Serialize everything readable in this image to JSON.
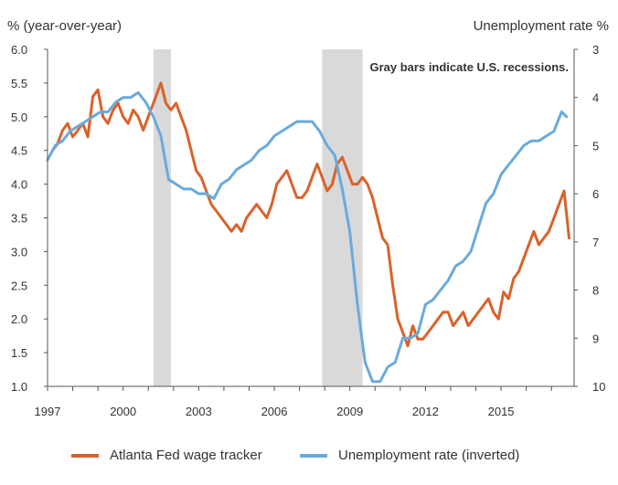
{
  "chart_data": {
    "type": "line",
    "title": "",
    "ylabel_left": "% (year-over-year)",
    "ylabel_right": "Unemployment rate  %",
    "annotation": "Gray bars indicate U.S. recessions.",
    "x_range": [
      1997,
      2017.9
    ],
    "x_ticks": [
      1997,
      2000,
      2003,
      2006,
      2009,
      2012,
      2015
    ],
    "x_tick_labels": [
      "1997",
      "2000",
      "2003",
      "2006",
      "2009",
      "2012",
      "2015"
    ],
    "y_left": {
      "range": [
        1.0,
        6.0
      ],
      "ticks": [
        1.0,
        1.5,
        2.0,
        2.5,
        3.0,
        3.5,
        4.0,
        4.5,
        5.0,
        5.5,
        6.0
      ],
      "tick_labels": [
        "1.0",
        "1.5",
        "2.0",
        "2.5",
        "3.0",
        "3.5",
        "4.0",
        "4.5",
        "5.0",
        "5.5",
        "6.0"
      ]
    },
    "y_right": {
      "range": [
        3,
        10
      ],
      "inverted": true,
      "ticks": [
        3,
        4,
        5,
        6,
        7,
        8,
        9,
        10
      ],
      "tick_labels": [
        "3",
        "4",
        "5",
        "6",
        "7",
        "8",
        "9",
        "10"
      ]
    },
    "recessions": [
      {
        "start": 2001.2,
        "end": 2001.9
      },
      {
        "start": 2007.9,
        "end": 2009.5
      }
    ],
    "series": [
      {
        "name": "Atlanta Fed wage tracker",
        "axis": "left",
        "color": "#d9622b",
        "x": [
          1997.2,
          1997.4,
          1997.6,
          1997.8,
          1998.0,
          1998.2,
          1998.4,
          1998.6,
          1998.8,
          1999.0,
          1999.2,
          1999.4,
          1999.6,
          1999.8,
          2000.0,
          2000.2,
          2000.4,
          2000.6,
          2000.8,
          2001.0,
          2001.1,
          2001.3,
          2001.5,
          2001.7,
          2001.9,
          2002.1,
          2002.3,
          2002.5,
          2002.7,
          2002.9,
          2003.1,
          2003.3,
          2003.5,
          2003.7,
          2003.9,
          2004.1,
          2004.3,
          2004.5,
          2004.7,
          2004.9,
          2005.1,
          2005.3,
          2005.5,
          2005.7,
          2005.9,
          2006.1,
          2006.3,
          2006.5,
          2006.7,
          2006.9,
          2007.1,
          2007.3,
          2007.5,
          2007.7,
          2007.9,
          2008.1,
          2008.3,
          2008.5,
          2008.7,
          2008.9,
          2009.1,
          2009.3,
          2009.5,
          2009.7,
          2009.9,
          2010.1,
          2010.3,
          2010.5,
          2010.7,
          2010.9,
          2011.1,
          2011.3,
          2011.5,
          2011.7,
          2011.9,
          2012.1,
          2012.3,
          2012.5,
          2012.7,
          2012.9,
          2013.1,
          2013.3,
          2013.5,
          2013.7,
          2013.9,
          2014.1,
          2014.3,
          2014.5,
          2014.7,
          2014.9,
          2015.1,
          2015.3,
          2015.5,
          2015.7,
          2015.9,
          2016.1,
          2016.3,
          2016.5,
          2016.7,
          2016.9,
          2017.1,
          2017.3,
          2017.5,
          2017.7
        ],
        "values": [
          4.5,
          4.6,
          4.8,
          4.9,
          4.7,
          4.8,
          4.9,
          4.7,
          5.3,
          5.4,
          5.0,
          4.9,
          5.1,
          5.2,
          5.0,
          4.9,
          5.1,
          5.0,
          4.8,
          5.0,
          5.1,
          5.3,
          5.5,
          5.2,
          5.1,
          5.2,
          5.0,
          4.8,
          4.5,
          4.2,
          4.1,
          3.9,
          3.7,
          3.6,
          3.5,
          3.4,
          3.3,
          3.4,
          3.3,
          3.5,
          3.6,
          3.7,
          3.6,
          3.5,
          3.7,
          4.0,
          4.1,
          4.2,
          4.0,
          3.8,
          3.8,
          3.9,
          4.1,
          4.3,
          4.1,
          3.9,
          4.0,
          4.3,
          4.4,
          4.2,
          4.0,
          4.0,
          4.1,
          4.0,
          3.8,
          3.5,
          3.2,
          3.1,
          2.5,
          2.0,
          1.8,
          1.6,
          1.9,
          1.7,
          1.7,
          1.8,
          1.9,
          2.0,
          2.1,
          2.1,
          1.9,
          2.0,
          2.1,
          1.9,
          2.0,
          2.1,
          2.2,
          2.3,
          2.1,
          2.0,
          2.4,
          2.3,
          2.6,
          2.7,
          2.9,
          3.1,
          3.3,
          3.1,
          3.2,
          3.3,
          3.5,
          3.7,
          3.9,
          3.2
        ]
      },
      {
        "name": "Unemployment rate (inverted)",
        "axis": "right",
        "color": "#6aaadc",
        "x": [
          1997.0,
          1997.3,
          1997.6,
          1997.9,
          1998.2,
          1998.5,
          1998.8,
          1999.1,
          1999.4,
          1999.7,
          2000.0,
          2000.3,
          2000.6,
          2000.9,
          2001.2,
          2001.5,
          2001.8,
          2002.1,
          2002.4,
          2002.7,
          2003.0,
          2003.3,
          2003.6,
          2003.9,
          2004.2,
          2004.5,
          2004.8,
          2005.1,
          2005.4,
          2005.7,
          2006.0,
          2006.3,
          2006.6,
          2006.9,
          2007.2,
          2007.5,
          2007.8,
          2008.1,
          2008.4,
          2008.7,
          2009.0,
          2009.3,
          2009.6,
          2009.9,
          2010.2,
          2010.5,
          2010.8,
          2011.1,
          2011.4,
          2011.7,
          2012.0,
          2012.3,
          2012.6,
          2012.9,
          2013.2,
          2013.5,
          2013.8,
          2014.1,
          2014.4,
          2014.7,
          2015.0,
          2015.3,
          2015.6,
          2015.9,
          2016.2,
          2016.5,
          2016.8,
          2017.1,
          2017.4,
          2017.6
        ],
        "values": [
          5.3,
          5.0,
          4.9,
          4.7,
          4.6,
          4.5,
          4.4,
          4.3,
          4.3,
          4.1,
          4.0,
          4.0,
          3.9,
          4.1,
          4.4,
          4.8,
          5.7,
          5.8,
          5.9,
          5.9,
          6.0,
          6.0,
          6.1,
          5.8,
          5.7,
          5.5,
          5.4,
          5.3,
          5.1,
          5.0,
          4.8,
          4.7,
          4.6,
          4.5,
          4.5,
          4.5,
          4.7,
          5.0,
          5.2,
          5.9,
          6.8,
          8.3,
          9.5,
          9.9,
          9.9,
          9.6,
          9.5,
          9.0,
          9.0,
          8.9,
          8.3,
          8.2,
          8.0,
          7.8,
          7.5,
          7.4,
          7.2,
          6.7,
          6.2,
          6.0,
          5.6,
          5.4,
          5.2,
          5.0,
          4.9,
          4.9,
          4.8,
          4.7,
          4.3,
          4.4
        ]
      }
    ]
  },
  "legend": {
    "items": [
      {
        "label": "Atlanta Fed wage tracker",
        "color": "#d9622b"
      },
      {
        "label": "Unemployment rate (inverted)",
        "color": "#6aaadc"
      }
    ]
  }
}
